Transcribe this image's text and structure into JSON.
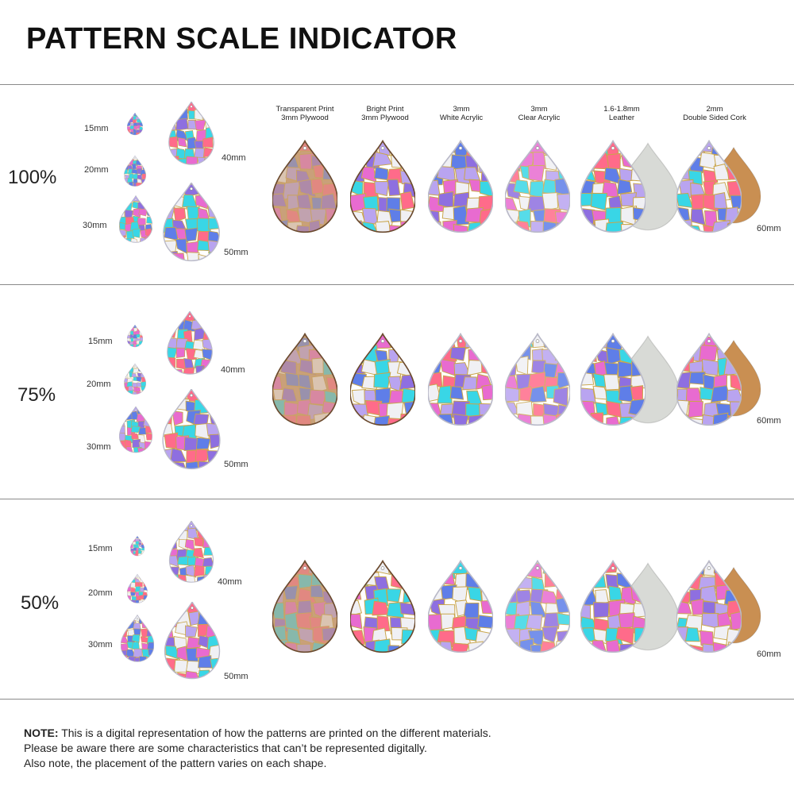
{
  "title": "PATTERN SCALE INDICATOR",
  "materials": [
    {
      "line1": "Transparent Print",
      "line2": "3mm Plywood",
      "type": "plywood-transparent"
    },
    {
      "line1": "Bright Print",
      "line2": "3mm Plywood",
      "type": "plywood-bright"
    },
    {
      "line1": "3mm",
      "line2": "White Acrylic",
      "type": "acrylic-white"
    },
    {
      "line1": "3mm",
      "line2": "Clear Acrylic",
      "type": "acrylic-clear"
    },
    {
      "line1": "1.6-1.8mm",
      "line2": "Leather",
      "type": "leather"
    },
    {
      "line1": "2mm",
      "line2": "Double Sided Cork",
      "type": "cork"
    }
  ],
  "sections": [
    {
      "scale": "100%",
      "sizes": [
        "15mm",
        "20mm",
        "30mm",
        "40mm",
        "50mm"
      ],
      "large_size": "60mm"
    },
    {
      "scale": "75%",
      "sizes": [
        "15mm",
        "20mm",
        "30mm",
        "40mm",
        "50mm"
      ],
      "large_size": "60mm"
    },
    {
      "scale": "50%",
      "sizes": [
        "15mm",
        "20mm",
        "30mm",
        "40mm",
        "50mm"
      ],
      "large_size": "60mm"
    }
  ],
  "note": {
    "label": "NOTE:",
    "line1": " This is a digital representation of how the patterns are printed on the different materials.",
    "line2": "Please be aware there are some characteristics that can’t be represented digitally.",
    "line3": "Also note, the placement of the pattern varies on each shape."
  },
  "colors": {
    "purple": "#8e6fe0",
    "pink": "#e86bd0",
    "cyan": "#39d6e6",
    "blue": "#5f7ee8",
    "gold_lines": "#c9a54a",
    "plywood": "#c9a07a",
    "leather_back": "#d8dad6",
    "cork_back": "#c98f52"
  }
}
